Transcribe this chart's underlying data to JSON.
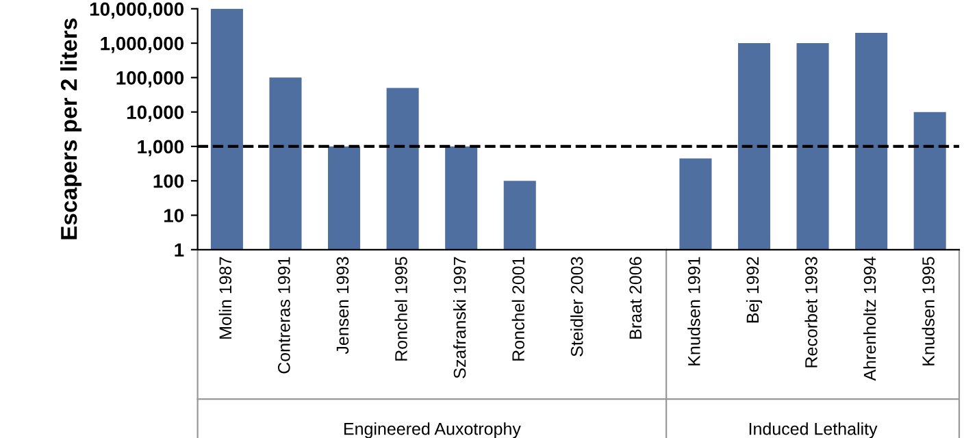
{
  "chart_data": {
    "type": "bar",
    "ylabel": "Escapers per 2 liters",
    "categories": [
      "Molin 1987",
      "Contreras 1991",
      "Jensen 1993",
      "Ronchel 1995",
      "Szafranski 1997",
      "Ronchel 2001",
      "Steidler 2003",
      "Braat 2006",
      "Knudsen 1991",
      "Bej 1992",
      "Recorbet 1993",
      "Ahrenholtz 1994",
      "Knudsen 1995"
    ],
    "values": [
      10000000,
      100000,
      1000,
      50000,
      1000,
      100,
      null,
      null,
      450,
      1000000,
      1000000,
      2000000,
      10000
    ],
    "color": "#4f6fa0",
    "log": true,
    "ylim": [
      1,
      10000000
    ],
    "yticks": [
      1,
      10,
      100,
      {
        "value": 1000,
        "label": "1,000"
      },
      {
        "value": 10000,
        "label": "10,000"
      },
      {
        "value": 100000,
        "label": "100,000"
      },
      {
        "value": 1000000,
        "label": "1,000,000"
      },
      {
        "value": 10000000,
        "label": "10,000,000"
      }
    ],
    "ref_lines": [
      {
        "axis": "y",
        "value": 1000,
        "color": "#000000",
        "line_style": "dashed"
      }
    ],
    "annotations": [
      "Engineered Auxotrophy",
      "Induced Lethality"
    ],
    "grid": false,
    "legend": false
  }
}
